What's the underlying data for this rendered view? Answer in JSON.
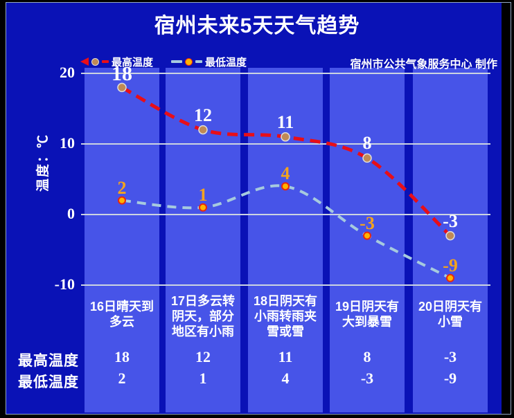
{
  "title": "宿州未来5天天气趋势",
  "credit": "宿州市公共气象服务中心 制作",
  "y_axis": {
    "title": "温度：℃",
    "ticks": [
      20,
      10,
      0,
      -10
    ]
  },
  "chart_data": {
    "type": "line",
    "title": "宿州未来5天天气趋势",
    "ylabel": "温度：℃",
    "ylim": [
      -13,
      21
    ],
    "grid": "horizontal",
    "legend_position": "top-left",
    "categories": [
      "16日晴天到多云",
      "17日多云转阴天，部分地区有小雨",
      "18日阴天有小雨转雨夹雪或雪",
      "19日阴天有大到暴雪",
      "20日阴天有小雪"
    ],
    "category_lines": [
      [
        "16日晴天到",
        "多云"
      ],
      [
        "17日多云转",
        "阴天，部分",
        "地区有小雨"
      ],
      [
        "18日阴天有",
        "小雨转雨夹",
        "雪或雪"
      ],
      [
        "19日阴天有",
        "大到暴雪"
      ],
      [
        "20日阴天有",
        "小雪"
      ]
    ],
    "series": [
      {
        "name": "最高温度",
        "values": [
          18,
          12,
          11,
          8,
          -3
        ],
        "line_color": "#e80e18",
        "marker_fill": "#c08a55",
        "marker_stroke": "#dddddd",
        "label_color": "#ffffff"
      },
      {
        "name": "最低温度",
        "values": [
          2,
          1,
          4,
          -3,
          -9
        ],
        "line_color": "#a6cade",
        "marker_fill": "#ffb400",
        "marker_stroke": "#e62810",
        "label_color": "#f2a31f"
      }
    ]
  },
  "table": {
    "rows": [
      {
        "label": "最高温度",
        "values": [
          "18",
          "12",
          "11",
          "8",
          "-3"
        ]
      },
      {
        "label": "最低温度",
        "values": [
          "2",
          "1",
          "4",
          "-3",
          "-9"
        ]
      }
    ]
  },
  "colors": {
    "page_bg": "#000000",
    "panel_bg": "#0a12b6",
    "bar": "#4754e8",
    "gridline": "#ccd4e0",
    "border": "#93a9c6",
    "text": "#ffffff",
    "max_line": "#e80e18",
    "min_line": "#a6cade"
  }
}
